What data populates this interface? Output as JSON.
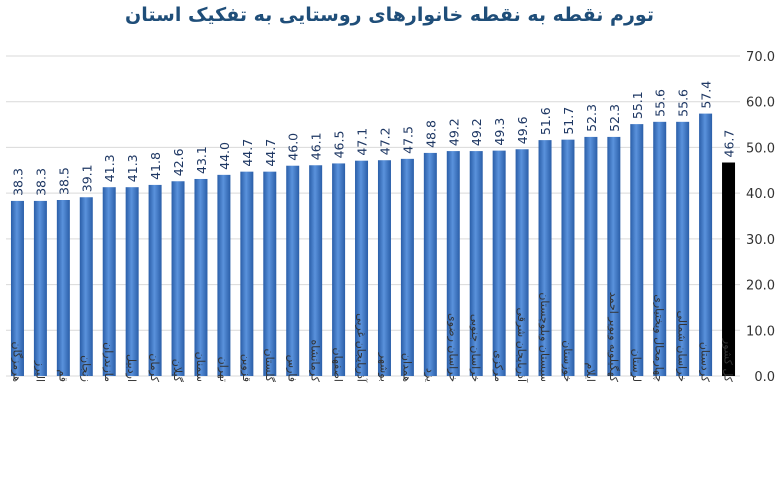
{
  "chart_data": {
    "type": "bar",
    "title": "تورم نقطه به نقطه خانوارهای روستایی به تفکیک استان",
    "categories": [
      "هرمزگان",
      "البرز",
      "قم",
      "زنجان",
      "مازندران",
      "اردبیل",
      "کرمان",
      "گیلان",
      "سمنان",
      "تهران",
      "قزوین",
      "گلستان",
      "فارس",
      "کرمانشاه",
      "اصفهان",
      "آذربایجان غربی",
      "بوشهر",
      "همدان",
      "یزد",
      "خراسان رضوی",
      "خراسان جنوبی",
      "مرکزی",
      "آذربایجان شرقی",
      "سیستان وبلوچستان",
      "خوزستان",
      "ایلام",
      "کهگیلویه وبویر احمد",
      "لرستان",
      "چهارمحال وبختیاری",
      "خراسان شمالی",
      "کردستان",
      "کل کشور"
    ],
    "values": [
      38.3,
      38.3,
      38.5,
      39.1,
      41.3,
      41.3,
      41.8,
      42.6,
      43.1,
      44.0,
      44.7,
      44.7,
      46.0,
      46.1,
      46.5,
      47.1,
      47.2,
      47.5,
      48.8,
      49.2,
      49.2,
      49.3,
      49.6,
      51.6,
      51.7,
      52.3,
      52.3,
      55.1,
      55.6,
      55.6,
      57.4,
      46.7
    ],
    "value_labels": [
      "38.3",
      "38.3",
      "38.5",
      "39.1",
      "41.3",
      "41.3",
      "41.8",
      "42.6",
      "43.1",
      "44.0",
      "44.7",
      "44.7",
      "46.0",
      "46.1",
      "46.5",
      "47.1",
      "47.2",
      "47.5",
      "48.8",
      "49.2",
      "49.2",
      "49.3",
      "49.6",
      "51.6",
      "51.7",
      "52.3",
      "52.3",
      "55.1",
      "55.6",
      "55.6",
      "57.4",
      "46.7"
    ],
    "ylim": [
      0,
      70
    ],
    "yticks": [
      "0.0",
      "10.0",
      "20.0",
      "30.0",
      "40.0",
      "50.0",
      "60.0",
      "70.0"
    ],
    "yaxis_position": "right",
    "grid": true,
    "colors": {
      "bar": "#3d78c8",
      "bar_dark": "#2a5ea8",
      "bar_light": "#5a92dc",
      "total_bar": "#000000",
      "grid": "#d9d9d9",
      "title": "#1f4e79",
      "label": "#1f3864",
      "axis_text": "#333333"
    },
    "highlighted_category": "کل کشور"
  }
}
